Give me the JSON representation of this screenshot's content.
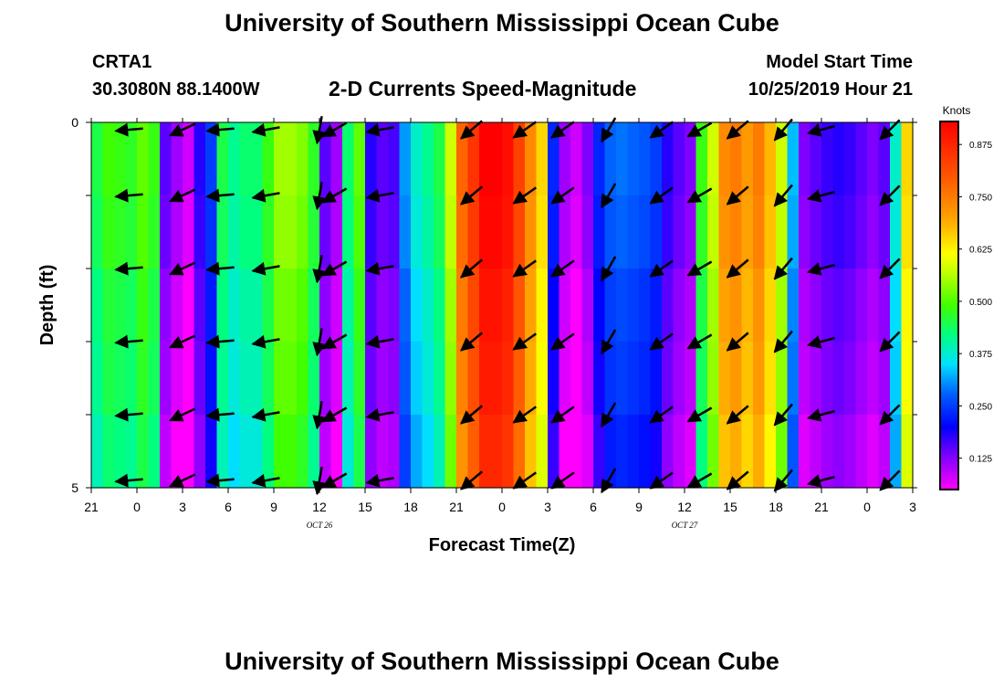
{
  "header": {
    "title": "University of Southern Mississippi Ocean Cube",
    "station_id": "CRTA1",
    "station_coords": "30.3080N 88.1400W",
    "model_label": "Model Start Time",
    "model_time": "10/25/2019 Hour 21"
  },
  "footer": {
    "title": "University of Southern Mississippi Ocean Cube"
  },
  "chart_data": {
    "type": "heatmap",
    "title": "2-D Currents Speed-Magnitude",
    "xlabel": "Forecast Time(Z)",
    "ylabel": "Depth (ft)",
    "colorbar_label": "Knots",
    "colorbar_ticks": [
      "0.125",
      "0.250",
      "0.375",
      "0.500",
      "0.625",
      "0.750",
      "0.875"
    ],
    "colorbar_range": [
      0.05,
      0.93
    ],
    "x_range_hours": [
      0,
      54
    ],
    "y_range_ft": [
      0,
      5
    ],
    "y_ticks": [
      "0",
      "",
      "",
      "",
      "",
      "5"
    ],
    "x_ticks": [
      "21",
      "0",
      "3",
      "6",
      "9",
      "12",
      "15",
      "18",
      "21",
      "0",
      "3",
      "6",
      "9",
      "12",
      "15",
      "18",
      "21",
      "0",
      "3"
    ],
    "date_labels": [
      {
        "text": "OCT 26",
        "hour": 15
      },
      {
        "text": "OCT 27",
        "hour": 39
      }
    ],
    "speed_columns_knots": [
      0.42,
      0.46,
      0.45,
      0.44,
      0.48,
      0.45,
      0.12,
      0.08,
      0.05,
      0.15,
      0.22,
      0.42,
      0.38,
      0.4,
      0.4,
      0.45,
      0.52,
      0.52,
      0.5,
      0.44,
      0.12,
      0.08,
      0.4,
      0.48,
      0.15,
      0.12,
      0.13,
      0.28,
      0.35,
      0.38,
      0.42,
      0.55,
      0.75,
      0.82,
      0.9,
      0.9,
      0.88,
      0.8,
      0.7,
      0.62,
      0.2,
      0.08,
      0.05,
      0.1,
      0.2,
      0.25,
      0.26,
      0.25,
      0.24,
      0.22,
      0.15,
      0.12,
      0.1,
      0.45,
      0.55,
      0.7,
      0.72,
      0.68,
      0.72,
      0.65,
      0.55,
      0.3,
      0.1,
      0.12,
      0.14,
      0.15,
      0.14,
      0.12,
      0.1,
      0.12,
      0.35,
      0.62
    ],
    "depth_adjust": [
      0.03,
      0.02,
      0.0,
      -0.01,
      -0.03
    ],
    "arrow_depths_ft": [
      0.1,
      1.0,
      2.0,
      3.0,
      4.0,
      4.9
    ],
    "arrow_times_h": [
      2.5,
      6,
      8.5,
      11.5,
      15,
      16,
      19,
      25,
      28.5,
      31,
      34,
      37.5,
      40,
      42.5,
      45.5,
      48,
      52.5
    ],
    "arrow_dirs_deg": [
      -175,
      -155,
      -175,
      -170,
      -100,
      -150,
      -170,
      -140,
      -145,
      -145,
      -120,
      -145,
      -150,
      -140,
      -130,
      -165,
      -135
    ]
  }
}
